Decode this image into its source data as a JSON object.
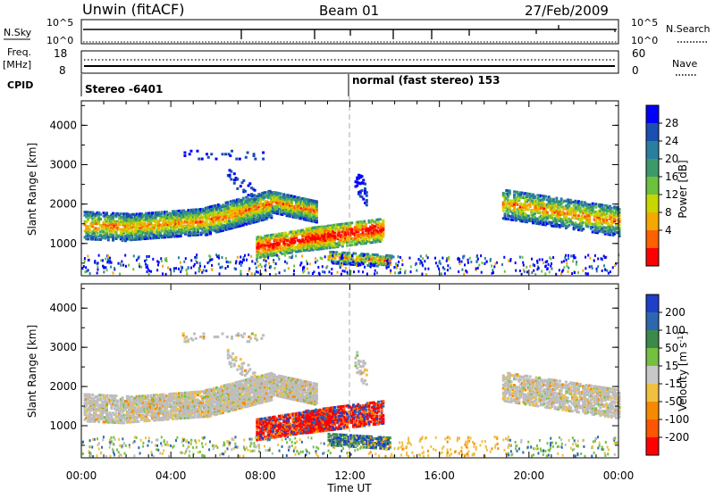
{
  "header": {
    "site": "Unwin (fitACF)",
    "beam": "Beam 01",
    "date": "27/Feb/2009"
  },
  "params": {
    "nsky_label": "N.Sky",
    "nsearch_label": "N.Search",
    "freq_label": "Freq.",
    "freq_unit": "[MHz]",
    "nave_label": "Nave",
    "cpid_label": "CPID",
    "left_top_tick": "10^5",
    "left_bottom_tick": "10^0",
    "right_top_tick": "10^5",
    "right_bottom_tick": "10^0",
    "freq_top_tick": "18",
    "freq_bottom_tick": "8",
    "nave_top_tick": "60",
    "nave_bottom_tick": "0",
    "cpid_left": "Stereo -6401",
    "cpid_right": "normal (fast stereo) 153"
  },
  "chart_data": [
    {
      "type": "heatmap",
      "panel": "power",
      "ylabel": "Slant Range [km]",
      "ylim": [
        180,
        4620
      ],
      "yticks": [
        "1000",
        "2000",
        "3000",
        "4000"
      ],
      "xlim": [
        0,
        24
      ],
      "colorbar": {
        "label": "Power [dB]",
        "ticks": [
          "4",
          "8",
          "12",
          "16",
          "20",
          "24",
          "28"
        ],
        "colors": [
          "#0000ff",
          "#1b4fb0",
          "#2a7fa0",
          "#3c9a6a",
          "#6cc13c",
          "#c8d600",
          "#f5a800",
          "#ff6000",
          "#ff0000"
        ]
      }
    },
    {
      "type": "heatmap",
      "panel": "velocity",
      "ylabel": "Slant Range [km]",
      "ylim": [
        180,
        4620
      ],
      "yticks": [
        "1000",
        "2000",
        "3000",
        "4000"
      ],
      "xlim": [
        0,
        24
      ],
      "xlabel": "Time UT",
      "xticks": [
        "00:00",
        "04:00",
        "08:00",
        "12:00",
        "16:00",
        "20:00",
        "00:00"
      ],
      "colorbar": {
        "label": "Velocity [m s",
        "label_sup": "-1",
        "label_end": "]",
        "ticks": [
          "200",
          "100",
          "50",
          "15",
          "-15",
          "-50",
          "-100",
          "-200"
        ],
        "colors": [
          "#1f3fc8",
          "#2c68b0",
          "#3c8a4a",
          "#74c040",
          "#c8c8c8",
          "#f0c040",
          "#f58a00",
          "#ff5500",
          "#ff0000"
        ]
      }
    }
  ],
  "colors": {
    "ground_scatter": "#bdbdbd",
    "scatter_blue": "#1c3fb8",
    "scatter_green": "#40a060",
    "scatter_red": "#ff1a00",
    "scatter_orange": "#f0a000"
  }
}
